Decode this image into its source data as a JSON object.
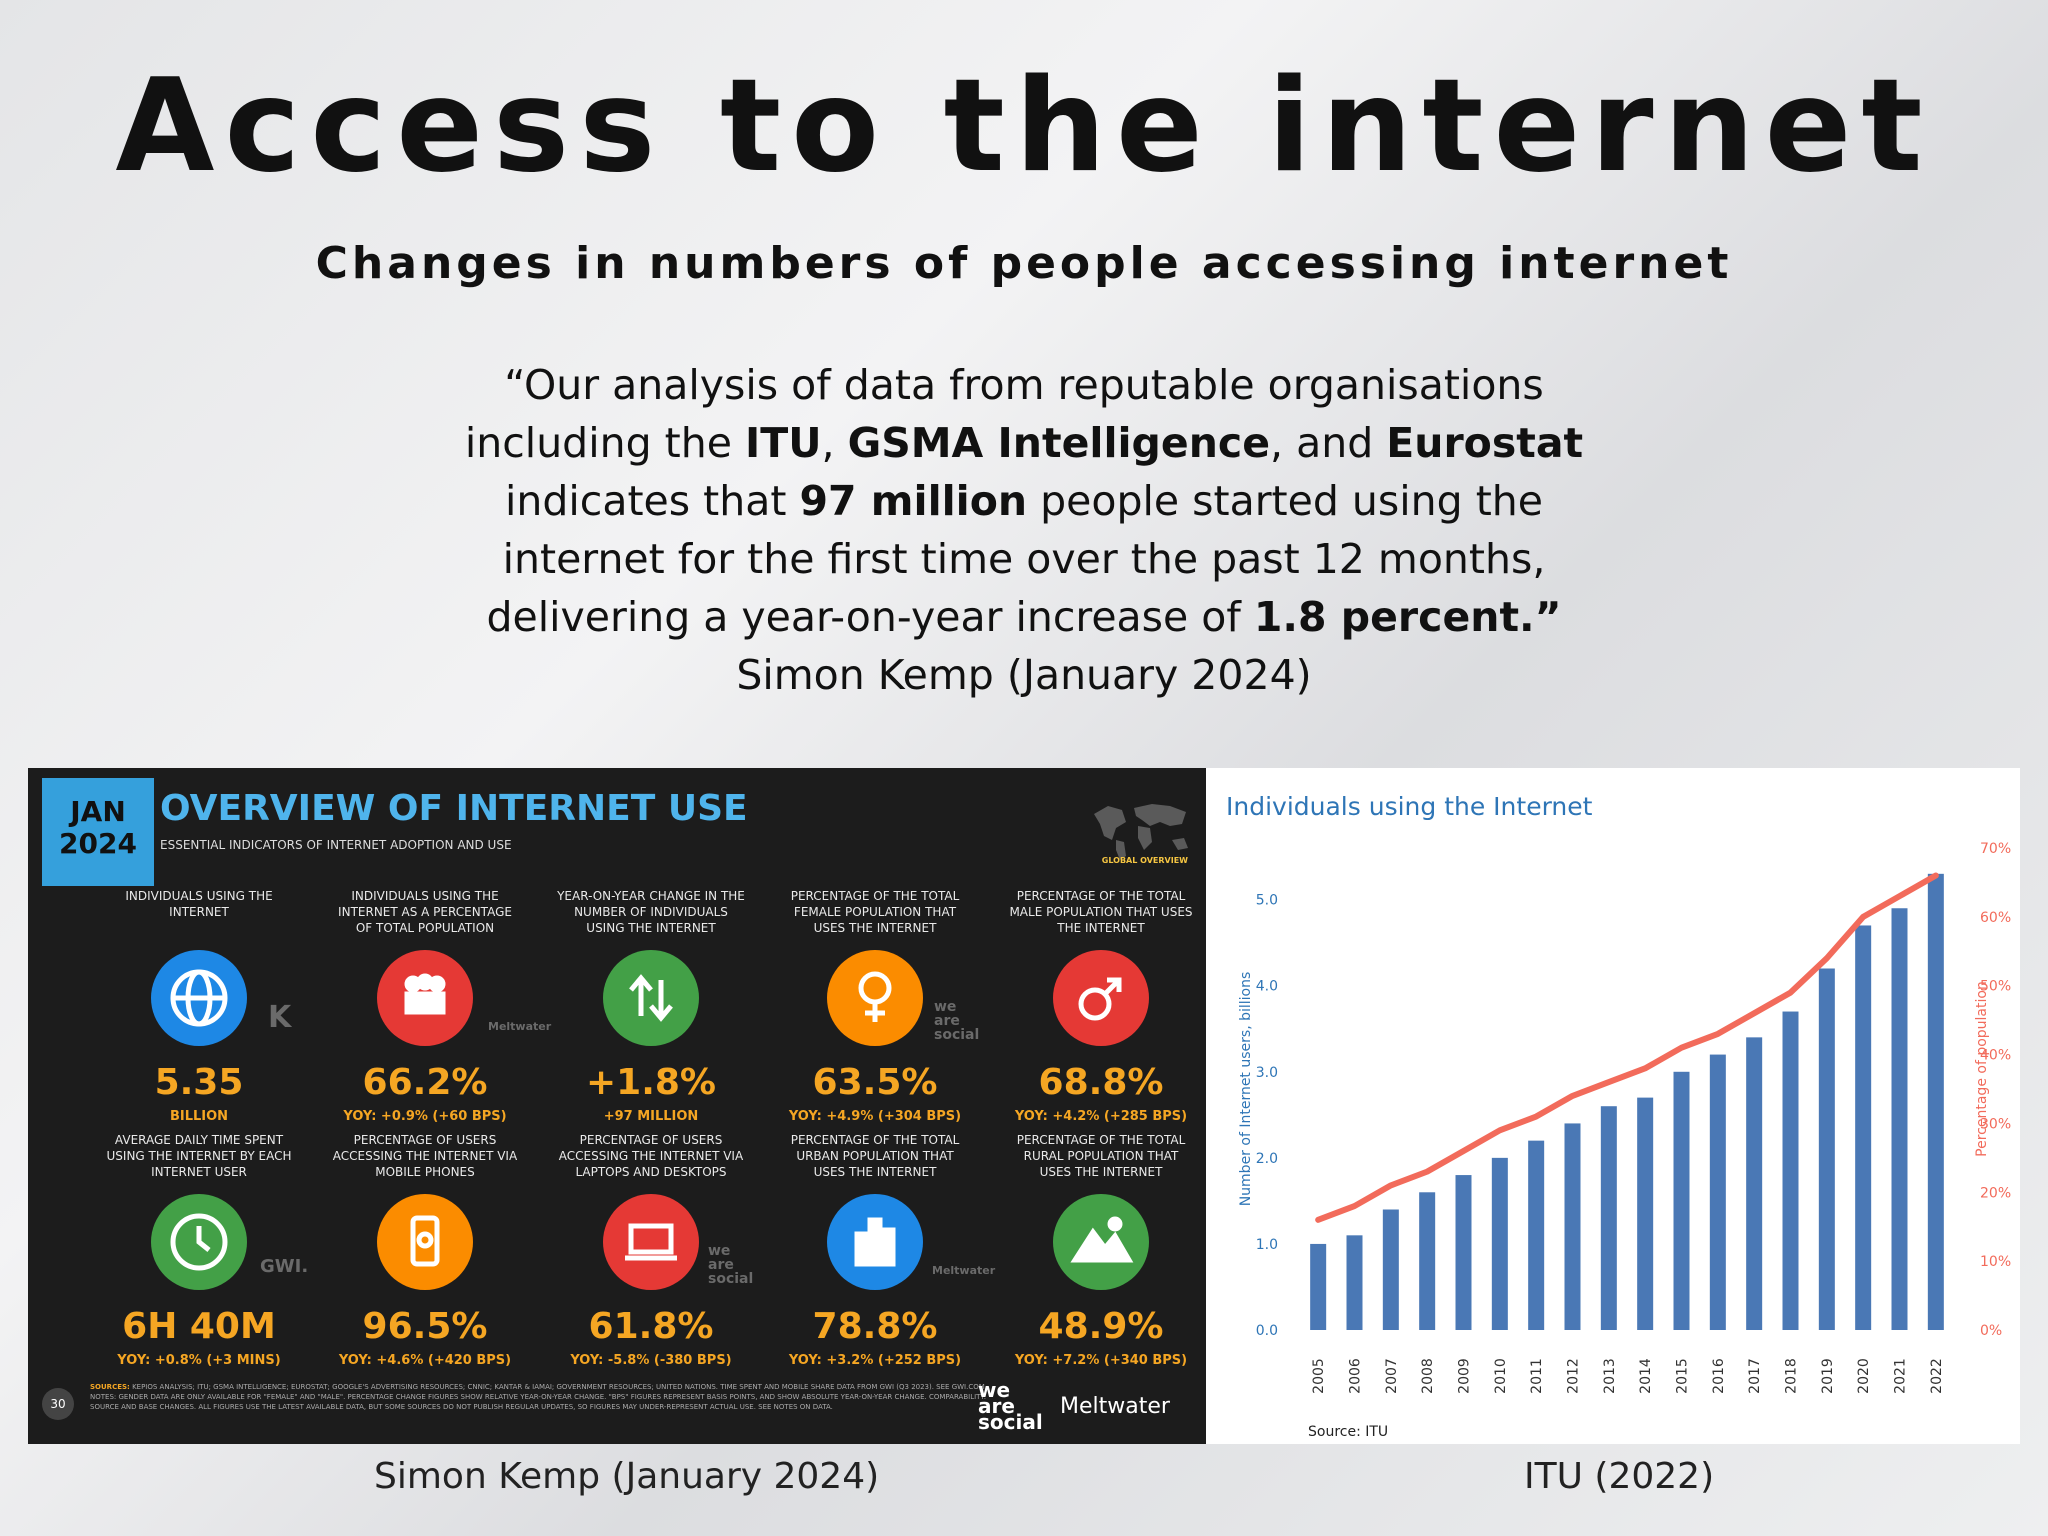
{
  "slide": {
    "title": "Access to the internet",
    "subtitle": "Changes in numbers of people accessing internet",
    "quote": {
      "l1": "“Our analysis of data from reputable organisations",
      "l2a": "including the ",
      "l2b": "ITU",
      "l2c": ", ",
      "l2d": "GSMA Intelligence",
      "l2e": ", and ",
      "l2f": "Eurostat",
      "l3a": "indicates that ",
      "l3b": "97 million",
      "l3c": " people started using the",
      "l4": "internet for the first time over the past 12 months,",
      "l5a": "delivering a year-on-year increase of ",
      "l5b": "1.8 percent.”",
      "author": "Simon Kemp (January 2024)"
    },
    "caption_left": "Simon Kemp (January 2024)",
    "caption_right": "ITU (2022)"
  },
  "overview": {
    "date_month": "JAN",
    "date_year": "2024",
    "title": "OVERVIEW OF INTERNET USE",
    "subtitle": "ESSENTIAL INDICATORS OF INTERNET ADOPTION AND USE",
    "map_label": "GLOBAL OVERVIEW",
    "tiles": [
      {
        "label": "INDIVIDUALS USING THE INTERNET",
        "value": "5.35",
        "change": "BILLION",
        "color": "#1e88e5",
        "icon": "globe-icon"
      },
      {
        "label": "INDIVIDUALS USING THE INTERNET AS A PERCENTAGE OF TOTAL POPULATION",
        "value": "66.2%",
        "change": "YOY: +0.9% (+60 BPS)",
        "color": "#e53935",
        "icon": "people-icon"
      },
      {
        "label": "YEAR-ON-YEAR CHANGE IN THE NUMBER OF INDIVIDUALS USING THE INTERNET",
        "value": "+1.8%",
        "change": "+97 MILLION",
        "color": "#43a047",
        "icon": "up-down-arrows-icon"
      },
      {
        "label": "PERCENTAGE OF THE TOTAL FEMALE POPULATION THAT USES THE INTERNET",
        "value": "63.5%",
        "change": "YOY: +4.9% (+304 BPS)",
        "color": "#fb8c00",
        "icon": "female-icon"
      },
      {
        "label": "PERCENTAGE OF THE TOTAL MALE POPULATION THAT USES THE INTERNET",
        "value": "68.8%",
        "change": "YOY: +4.2% (+285 BPS)",
        "color": "#e53935",
        "icon": "male-icon"
      },
      {
        "label": "AVERAGE DAILY TIME SPENT USING THE INTERNET BY EACH INTERNET USER",
        "value": "6H 40M",
        "change": "YOY: +0.8% (+3 MINS)",
        "color": "#43a047",
        "icon": "clock-icon"
      },
      {
        "label": "PERCENTAGE OF USERS ACCESSING THE INTERNET VIA MOBILE PHONES",
        "value": "96.5%",
        "change": "YOY: +4.6% (+420 BPS)",
        "color": "#fb8c00",
        "icon": "mobile-phone-icon"
      },
      {
        "label": "PERCENTAGE OF USERS ACCESSING THE INTERNET VIA LAPTOPS AND DESKTOPS",
        "value": "61.8%",
        "change": "YOY: -5.8% (-380 BPS)",
        "color": "#e53935",
        "icon": "laptop-icon"
      },
      {
        "label": "PERCENTAGE OF THE TOTAL URBAN POPULATION THAT USES THE INTERNET",
        "value": "78.8%",
        "change": "YOY: +3.2% (+252 BPS)",
        "color": "#1e88e5",
        "icon": "city-icon"
      },
      {
        "label": "PERCENTAGE OF THE TOTAL RURAL POPULATION THAT USES THE INTERNET",
        "value": "48.9%",
        "change": "YOY: +7.2% (+340 BPS)",
        "color": "#43a047",
        "icon": "mountains-icon"
      }
    ],
    "brands": {
      "kepios": "K",
      "meltwater_small": "Meltwater",
      "wesocial_small": "we are social",
      "gwi": "GWI."
    },
    "sources_label": "SOURCES:",
    "sources_text": "KEPIOS ANALYSIS; ITU; GSMA INTELLIGENCE; EUROSTAT; GOOGLE'S ADVERTISING RESOURCES; CNNIC; KANTAR & IAMAI; GOVERNMENT RESOURCES; UNITED NATIONS. TIME SPENT AND MOBILE SHARE DATA FROM GWI (Q3 2023). SEE GWI.COM. NOTES: GENDER DATA ARE ONLY AVAILABLE FOR \"FEMALE\" AND \"MALE\". PERCENTAGE CHANGE FIGURES SHOW RELATIVE YEAR-ON-YEAR CHANGE. \"BPS\" FIGURES REPRESENT BASIS POINTS, AND SHOW ABSOLUTE YEAR-ON-YEAR CHANGE. COMPARABILITY: SOURCE AND BASE CHANGES. ALL FIGURES USE THE LATEST AVAILABLE DATA, BUT SOME SOURCES DO NOT PUBLISH REGULAR UPDATES, SO FIGURES MAY UNDER-REPRESENT ACTUAL USE. SEE NOTES ON DATA.",
    "page_number": "30",
    "footer_wesocial": "we are social",
    "footer_meltwater": "Meltwater"
  },
  "chart_data": {
    "type": "bar",
    "title": "Individuals using the Internet",
    "ylabel": "Number of Internet users, billions",
    "y2label": "Percentage of population",
    "categories": [
      "2005",
      "2006",
      "2007",
      "2008",
      "2009",
      "2010",
      "2011",
      "2012",
      "2013",
      "2014",
      "2015",
      "2016",
      "2017",
      "2018",
      "2019",
      "2020",
      "2021",
      "2022"
    ],
    "series": [
      {
        "name": "Number of Internet users, billions",
        "type": "bar",
        "axis": "left",
        "values": [
          1.0,
          1.1,
          1.4,
          1.6,
          1.8,
          2.0,
          2.2,
          2.4,
          2.6,
          2.7,
          3.0,
          3.2,
          3.4,
          3.7,
          4.2,
          4.7,
          4.9,
          5.3
        ],
        "color": "#4a78b5"
      },
      {
        "name": "Percentage of population",
        "type": "line",
        "axis": "right",
        "values": [
          16,
          18,
          21,
          23,
          26,
          29,
          31,
          34,
          36,
          38,
          41,
          43,
          46,
          49,
          54,
          60,
          63,
          66
        ],
        "color": "#f26b5b"
      }
    ],
    "yticks": [
      "0.0",
      "1.0",
      "2.0",
      "3.0",
      "4.0",
      "5.0"
    ],
    "y2ticks": [
      "0%",
      "10%",
      "20%",
      "30%",
      "40%",
      "50%",
      "60%",
      "70%"
    ],
    "ylim": [
      0,
      5.6
    ],
    "y2lim": [
      0,
      70
    ],
    "source": "Source: ITU"
  }
}
